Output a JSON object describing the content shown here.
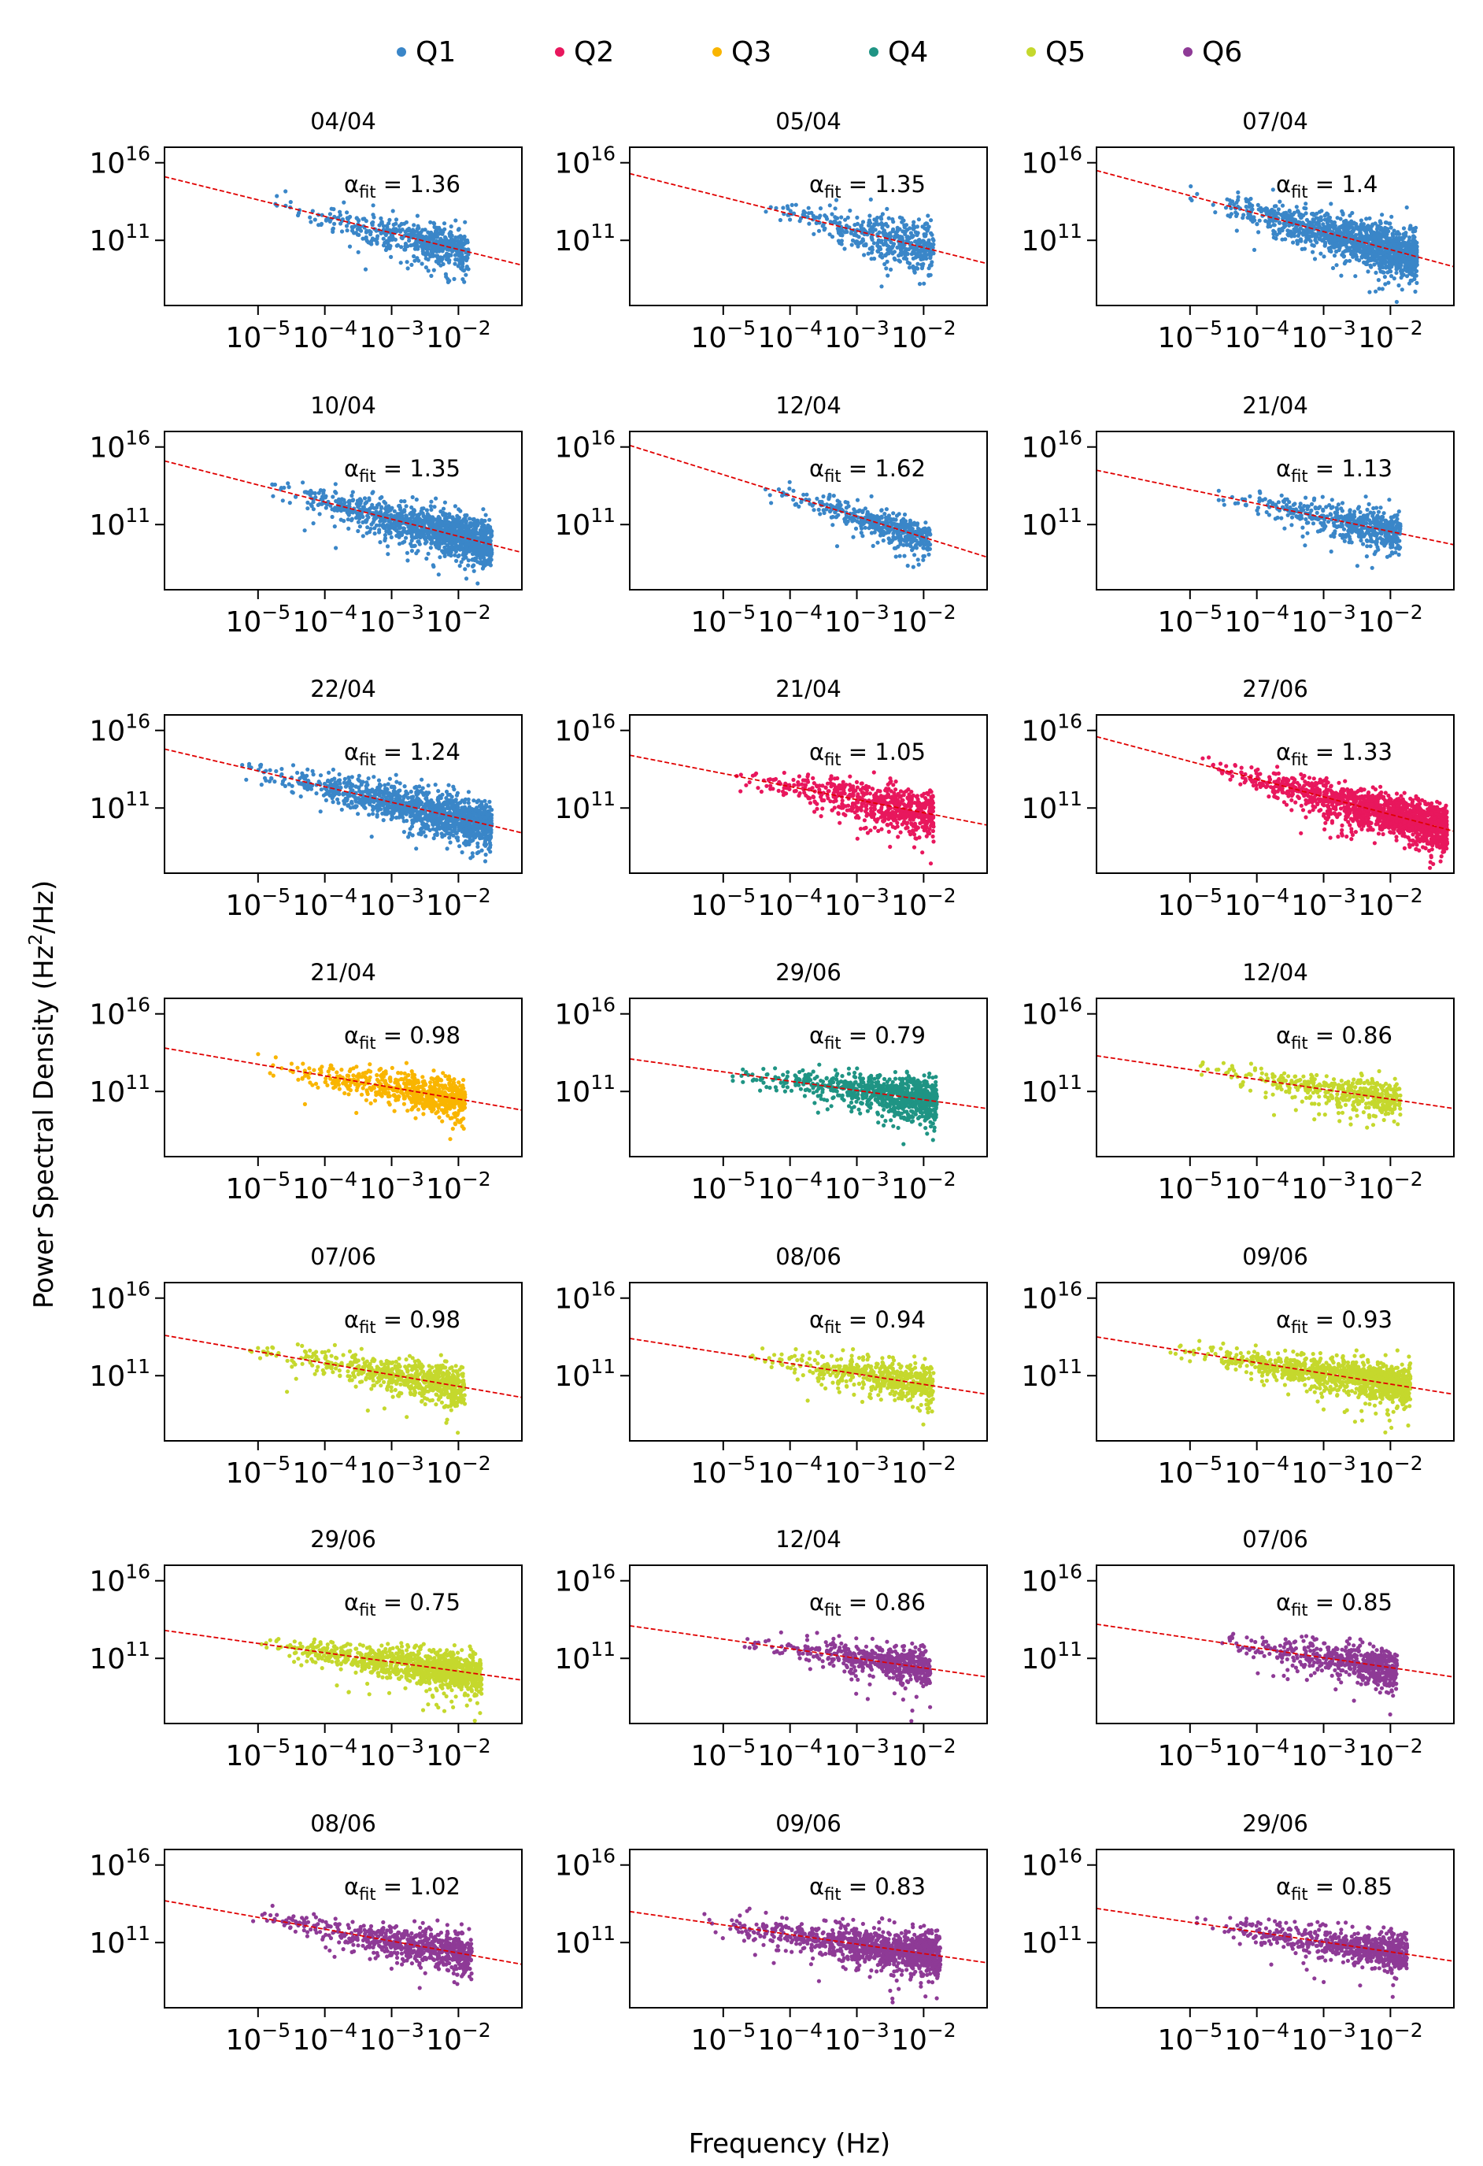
{
  "figure": {
    "xlabel": "Frequency (Hz)",
    "ylabel_main": "Power Spectral Density (Hz",
    "ylabel_sup": "2",
    "ylabel_end": "/Hz)",
    "alpha_symbol": "α",
    "alpha_sub": "fit"
  },
  "legend": [
    {
      "label": "Q1",
      "color": "#3a86c8"
    },
    {
      "label": "Q2",
      "color": "#e8175d"
    },
    {
      "label": "Q3",
      "color": "#f9b500"
    },
    {
      "label": "Q4",
      "color": "#1f9484"
    },
    {
      "label": "Q5",
      "color": "#c5d82d"
    },
    {
      "label": "Q6",
      "color": "#8e3a96"
    }
  ],
  "chart_data": {
    "type": "scatter",
    "x_scale": "log",
    "y_scale": "log",
    "xlim_log10": [
      -6.4,
      -1.05
    ],
    "ylim_log10": [
      6.8,
      17
    ],
    "x_ticks": [
      {
        "base": "10",
        "exp": "−5",
        "value": -5
      },
      {
        "base": "10",
        "exp": "−4",
        "value": -4
      },
      {
        "base": "10",
        "exp": "−3",
        "value": -3
      },
      {
        "base": "10",
        "exp": "−2",
        "value": -2
      }
    ],
    "y_ticks": [
      {
        "base": "10",
        "exp": "16",
        "value": 16
      },
      {
        "base": "10",
        "exp": "11",
        "value": 11
      }
    ],
    "fit_line_color": "#e00000",
    "panels": [
      {
        "title": "04/04",
        "group": "Q1",
        "alpha": "1.36",
        "fit": [
          15.1,
          9.4
        ],
        "xmin": -4.8,
        "xmax": -1.85,
        "nmain": 520,
        "spread": 0.55
      },
      {
        "title": "05/04",
        "group": "Q1",
        "alpha": "1.35",
        "fit": [
          15.3,
          9.5
        ],
        "xmin": -4.4,
        "xmax": -1.85,
        "nmain": 420,
        "spread": 0.7
      },
      {
        "title": "07/04",
        "group": "Q1",
        "alpha": "1.4",
        "fit": [
          15.5,
          9.3
        ],
        "xmin": -5.0,
        "xmax": -1.6,
        "nmain": 1300,
        "spread": 0.65
      },
      {
        "title": "10/04",
        "group": "Q1",
        "alpha": "1.35",
        "fit": [
          15.1,
          9.2
        ],
        "xmin": -4.9,
        "xmax": -1.5,
        "nmain": 1300,
        "spread": 0.6
      },
      {
        "title": "12/04",
        "group": "Q1",
        "alpha": "1.62",
        "fit": [
          16.1,
          8.9
        ],
        "xmin": -4.4,
        "xmax": -1.9,
        "nmain": 420,
        "spread": 0.45
      },
      {
        "title": "21/04",
        "group": "Q1",
        "alpha": "1.13",
        "fit": [
          14.5,
          9.7
        ],
        "xmin": -4.6,
        "xmax": -1.85,
        "nmain": 520,
        "spread": 0.55
      },
      {
        "title": "22/04",
        "group": "Q1",
        "alpha": "1.24",
        "fit": [
          14.8,
          9.4
        ],
        "xmin": -5.3,
        "xmax": -1.5,
        "nmain": 1300,
        "spread": 0.6
      },
      {
        "title": "21/04",
        "group": "Q2",
        "alpha": "1.05",
        "fit": [
          14.4,
          9.9
        ],
        "xmin": -4.8,
        "xmax": -1.85,
        "nmain": 650,
        "spread": 0.6
      },
      {
        "title": "27/06",
        "group": "Q2",
        "alpha": "1.33",
        "fit": [
          15.6,
          9.5
        ],
        "xmin": -4.9,
        "xmax": -1.15,
        "nmain": 1500,
        "spread": 0.6
      },
      {
        "title": "21/04",
        "group": "Q3",
        "alpha": "0.98",
        "fit": [
          13.8,
          9.8
        ],
        "xmin": -5.0,
        "xmax": -1.9,
        "nmain": 650,
        "spread": 0.55
      },
      {
        "title": "29/06",
        "group": "Q4",
        "alpha": "0.79",
        "fit": [
          13.1,
          9.9
        ],
        "xmin": -4.9,
        "xmax": -1.8,
        "nmain": 800,
        "spread": 0.6
      },
      {
        "title": "12/04",
        "group": "Q5",
        "alpha": "0.86",
        "fit": [
          13.3,
          9.9
        ],
        "xmin": -4.9,
        "xmax": -1.85,
        "nmain": 420,
        "spread": 0.5
      },
      {
        "title": "07/06",
        "group": "Q5",
        "alpha": "0.98",
        "fit": [
          13.6,
          9.6
        ],
        "xmin": -5.2,
        "xmax": -1.9,
        "nmain": 650,
        "spread": 0.55
      },
      {
        "title": "08/06",
        "group": "Q5",
        "alpha": "0.94",
        "fit": [
          13.4,
          9.8
        ],
        "xmin": -4.6,
        "xmax": -1.85,
        "nmain": 520,
        "spread": 0.55
      },
      {
        "title": "09/06",
        "group": "Q5",
        "alpha": "0.93",
        "fit": [
          13.5,
          9.8
        ],
        "xmin": -5.3,
        "xmax": -1.7,
        "nmain": 1100,
        "spread": 0.55
      },
      {
        "title": "29/06",
        "group": "Q5",
        "alpha": "0.75",
        "fit": [
          12.8,
          9.6
        ],
        "xmin": -5.2,
        "xmax": -1.65,
        "nmain": 1100,
        "spread": 0.5
      },
      {
        "title": "12/04",
        "group": "Q6",
        "alpha": "0.86",
        "fit": [
          13.1,
          9.8
        ],
        "xmin": -4.7,
        "xmax": -1.9,
        "nmain": 520,
        "spread": 0.55
      },
      {
        "title": "07/06",
        "group": "Q6",
        "alpha": "0.85",
        "fit": [
          13.2,
          9.8
        ],
        "xmin": -4.6,
        "xmax": -1.9,
        "nmain": 520,
        "spread": 0.55
      },
      {
        "title": "08/06",
        "group": "Q6",
        "alpha": "1.02",
        "fit": [
          13.7,
          9.6
        ],
        "xmin": -5.2,
        "xmax": -1.8,
        "nmain": 650,
        "spread": 0.6
      },
      {
        "title": "09/06",
        "group": "Q6",
        "alpha": "0.83",
        "fit": [
          13.0,
          9.7
        ],
        "xmin": -5.3,
        "xmax": -1.75,
        "nmain": 1100,
        "spread": 0.6
      },
      {
        "title": "29/06",
        "group": "Q6",
        "alpha": "0.85",
        "fit": [
          13.2,
          9.8
        ],
        "xmin": -4.9,
        "xmax": -1.75,
        "nmain": 650,
        "spread": 0.55
      }
    ]
  }
}
